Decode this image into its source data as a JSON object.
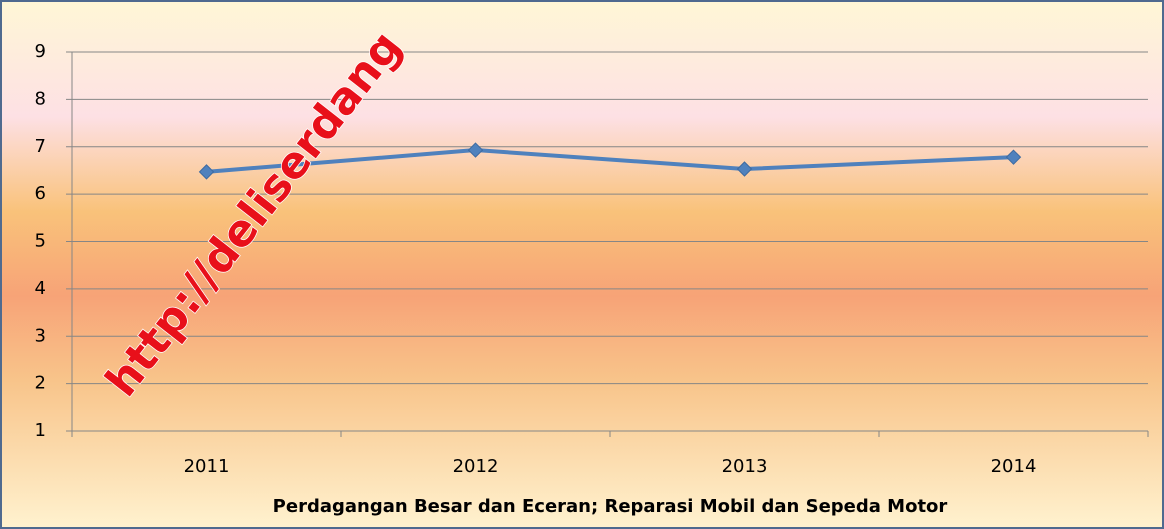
{
  "chart_data": {
    "type": "line",
    "x_label": "Perdagangan Besar dan Eceran; Reparasi Mobil dan Sepeda Motor",
    "categories": [
      "2011",
      "2012",
      "2013",
      "2014"
    ],
    "series": [
      {
        "name": "Perdagangan Besar dan Eceran; Reparasi Mobil dan Sepeda Motor",
        "color": "#4f81bd",
        "values": [
          6.47,
          6.93,
          6.53,
          6.78
        ]
      }
    ],
    "ylim": [
      1,
      9
    ],
    "yticks": [
      1,
      2,
      3,
      4,
      5,
      6,
      7,
      8,
      9
    ],
    "grid": true,
    "watermark": "http://deliserdang"
  }
}
